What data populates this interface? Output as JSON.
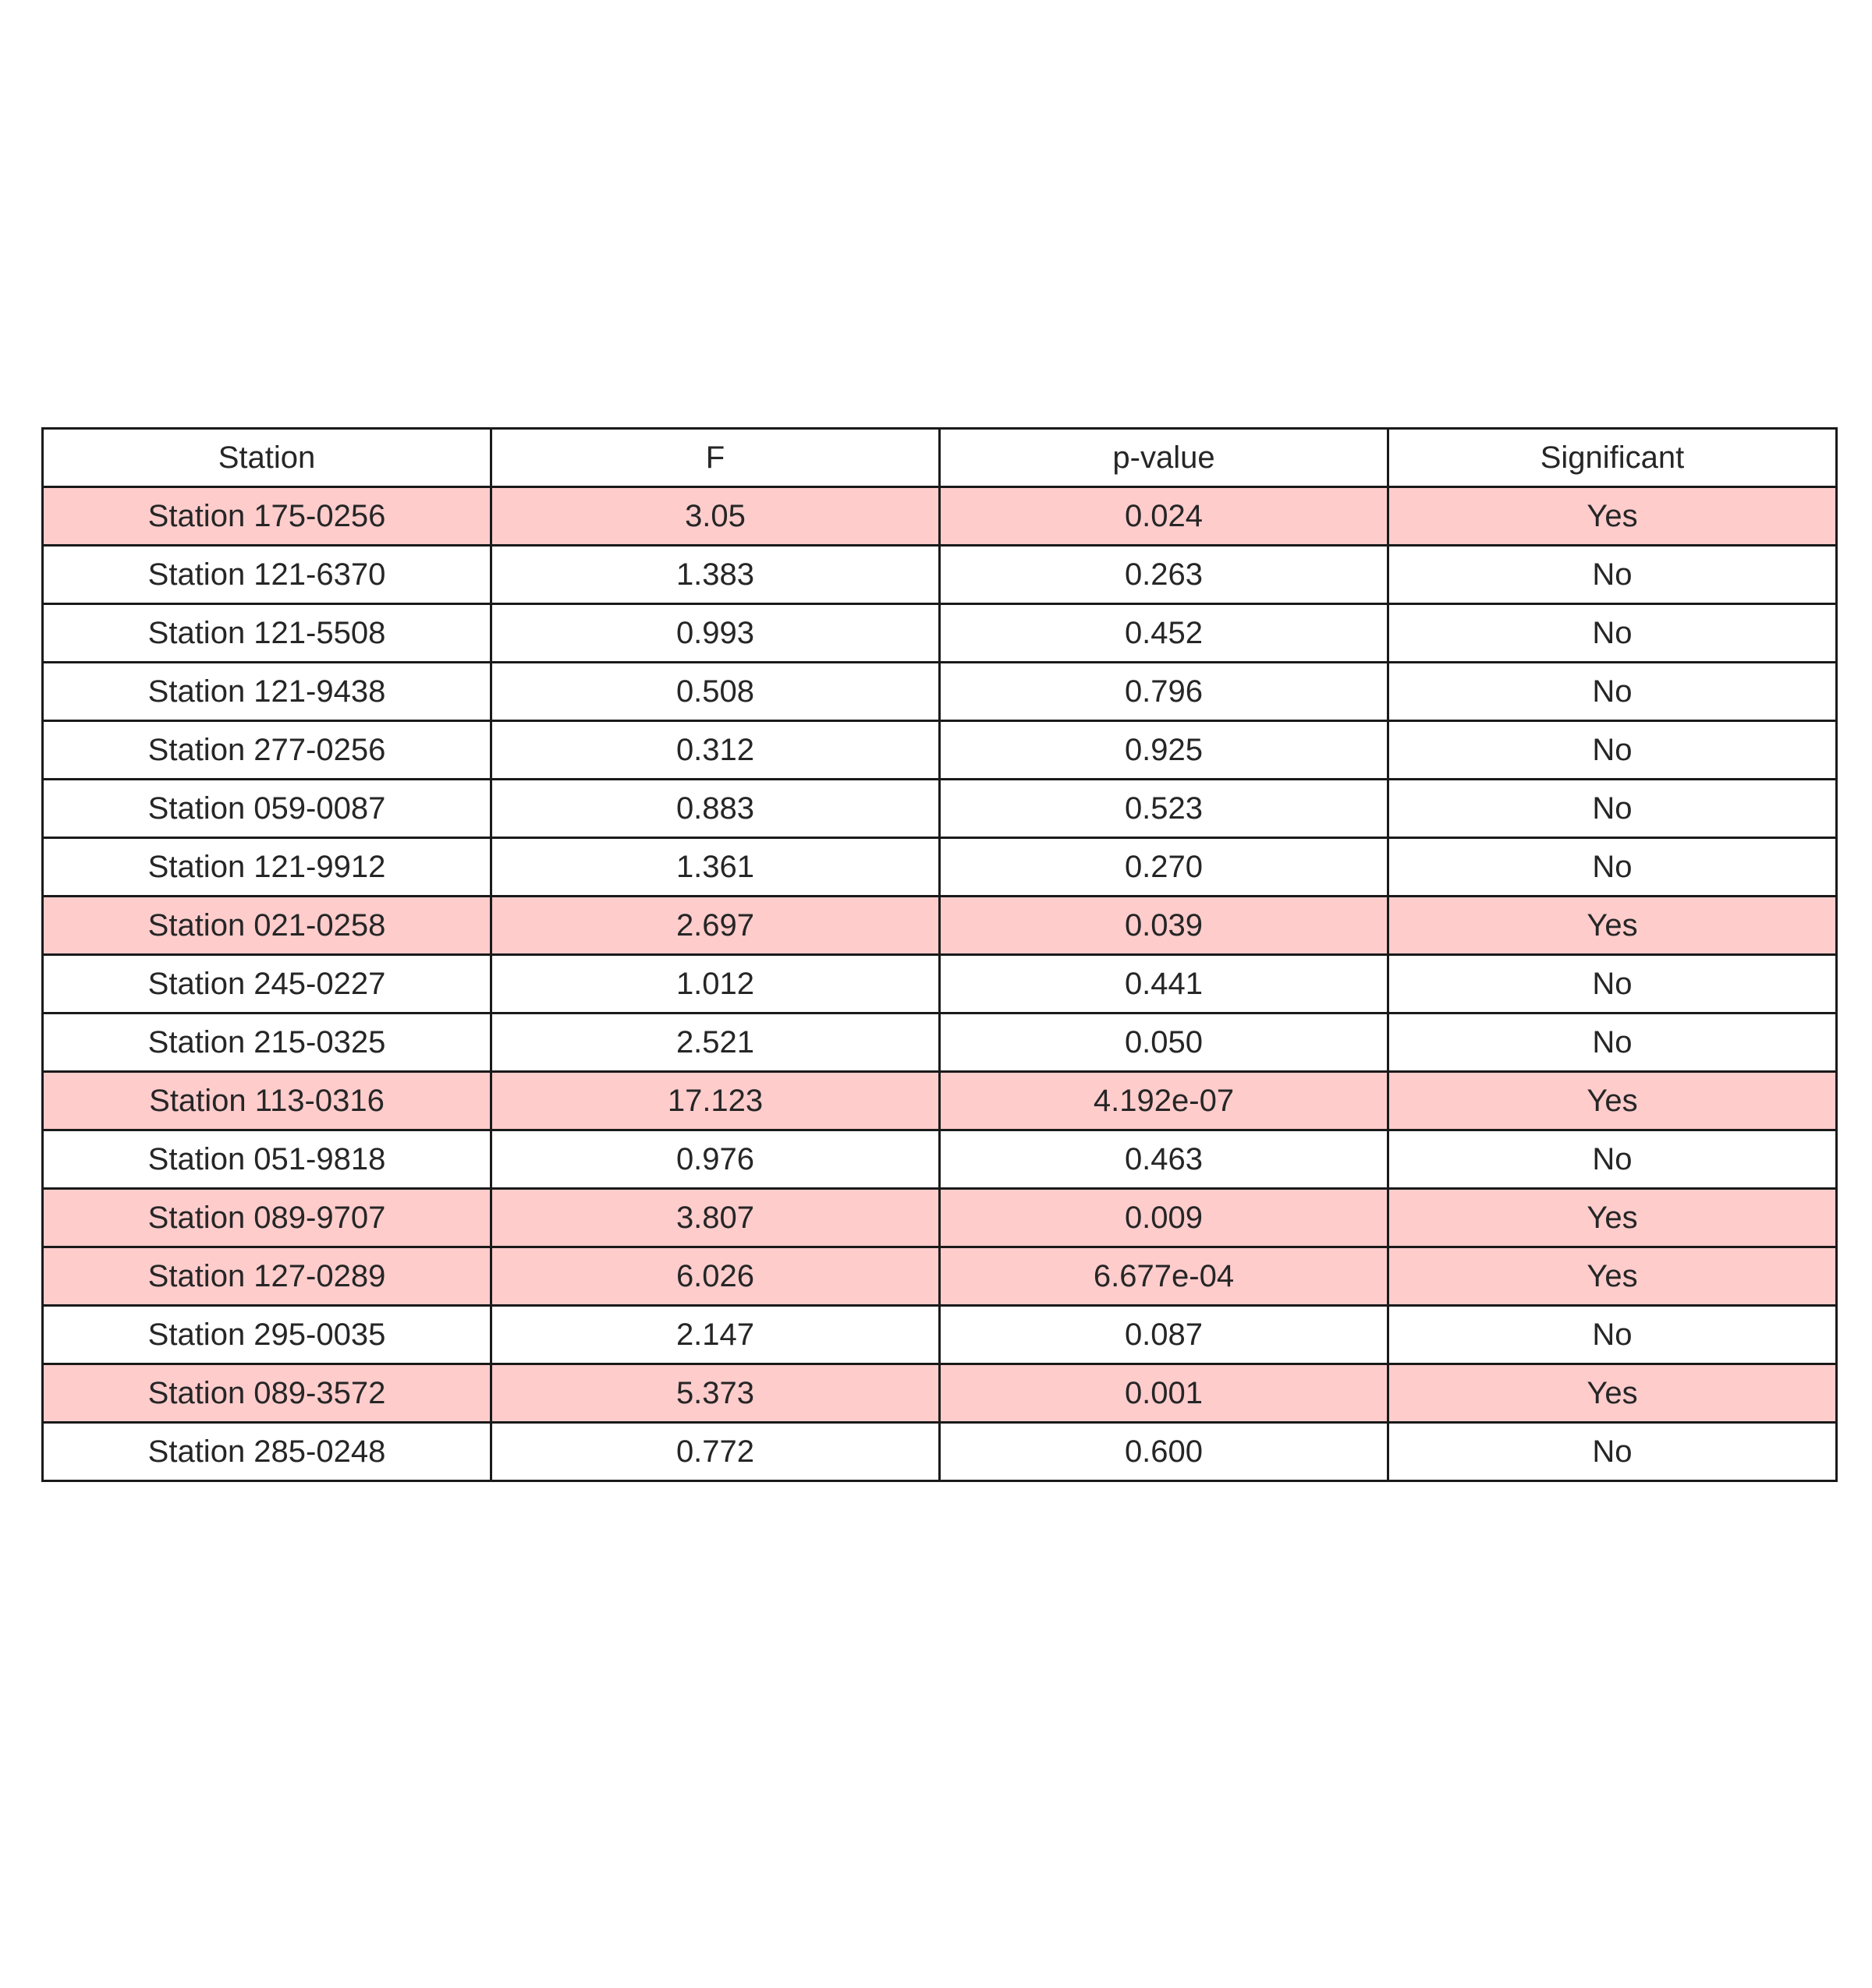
{
  "chart_data": {
    "type": "table",
    "columns": [
      "Station",
      "F",
      "p-value",
      "Significant"
    ],
    "rows": [
      [
        "Station 175-0256",
        "3.05",
        "0.024",
        "Yes"
      ],
      [
        "Station 121-6370",
        "1.383",
        "0.263",
        "No"
      ],
      [
        "Station 121-5508",
        "0.993",
        "0.452",
        "No"
      ],
      [
        "Station 121-9438",
        "0.508",
        "0.796",
        "No"
      ],
      [
        "Station 277-0256",
        "0.312",
        "0.925",
        "No"
      ],
      [
        "Station 059-0087",
        "0.883",
        "0.523",
        "No"
      ],
      [
        "Station 121-9912",
        "1.361",
        "0.270",
        "No"
      ],
      [
        "Station 021-0258",
        "2.697",
        "0.039",
        "Yes"
      ],
      [
        "Station 245-0227",
        "1.012",
        "0.441",
        "No"
      ],
      [
        "Station 215-0325",
        "2.521",
        "0.050",
        "No"
      ],
      [
        "Station 113-0316",
        "17.123",
        "4.192e-07",
        "Yes"
      ],
      [
        "Station 051-9818",
        "0.976",
        "0.463",
        "No"
      ],
      [
        "Station 089-9707",
        "3.807",
        "0.009",
        "Yes"
      ],
      [
        "Station 127-0289",
        "6.026",
        "6.677e-04",
        "Yes"
      ],
      [
        "Station 295-0035",
        "2.147",
        "0.087",
        "No"
      ],
      [
        "Station 089-3572",
        "5.373",
        "0.001",
        "Yes"
      ],
      [
        "Station 285-0248",
        "0.772",
        "0.600",
        "No"
      ]
    ]
  },
  "colors": {
    "significant_row_fill": "#ffcccc",
    "default_row_fill": "#ffffff",
    "grid_line": "#1a1a1a",
    "text": "#262626"
  }
}
